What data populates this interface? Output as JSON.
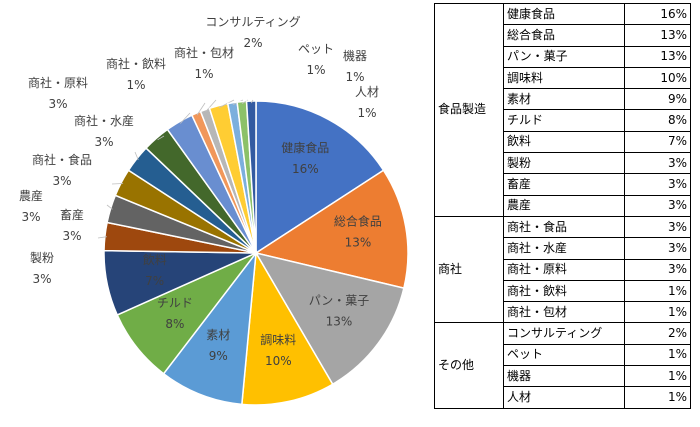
{
  "chart_data": {
    "type": "pie",
    "slices": [
      {
        "label": "健康食品",
        "value": 16,
        "percent_label": "16%",
        "color": "#4472C4"
      },
      {
        "label": "総合食品",
        "value": 13,
        "percent_label": "13%",
        "color": "#ED7D31"
      },
      {
        "label": "パン・菓子",
        "value": 13,
        "percent_label": "13%",
        "color": "#A5A5A5"
      },
      {
        "label": "調味料",
        "value": 10,
        "percent_label": "10%",
        "color": "#FFC000"
      },
      {
        "label": "素材",
        "value": 9,
        "percent_label": "9%",
        "color": "#5B9BD5"
      },
      {
        "label": "チルド",
        "value": 8,
        "percent_label": "8%",
        "color": "#70AD47"
      },
      {
        "label": "飲料",
        "value": 7,
        "percent_label": "7%",
        "color": "#264478"
      },
      {
        "label": "製粉",
        "value": 3,
        "percent_label": "3%",
        "color": "#9E480E"
      },
      {
        "label": "畜産",
        "value": 3,
        "percent_label": "3%",
        "color": "#636363"
      },
      {
        "label": "農産",
        "value": 3,
        "percent_label": "3%",
        "color": "#997300"
      },
      {
        "label": "商社・食品",
        "value": 3,
        "percent_label": "3%",
        "color": "#255E91"
      },
      {
        "label": "商社・水産",
        "value": 3,
        "percent_label": "3%",
        "color": "#43682B"
      },
      {
        "label": "商社・原料",
        "value": 3,
        "percent_label": "3%",
        "color": "#698ED0"
      },
      {
        "label": "商社・飲料",
        "value": 1,
        "percent_label": "1%",
        "color": "#F1975A"
      },
      {
        "label": "商社・包材",
        "value": 1,
        "percent_label": "1%",
        "color": "#B7B7B7"
      },
      {
        "label": "コンサルティング",
        "value": 2,
        "percent_label": "2%",
        "color": "#FFCD33"
      },
      {
        "label": "ペット",
        "value": 1,
        "percent_label": "1%",
        "color": "#7CAFDD"
      },
      {
        "label": "機器",
        "value": 1,
        "percent_label": "1%",
        "color": "#8CC168"
      },
      {
        "label": "人材",
        "value": 1,
        "percent_label": "1%",
        "color": "#335AA1"
      }
    ]
  },
  "table": {
    "groups": [
      {
        "name": "食品製造",
        "rows": [
          {
            "name": "健康食品",
            "value": "16%"
          },
          {
            "name": "総合食品",
            "value": "13%"
          },
          {
            "name": "パン・菓子",
            "value": "13%"
          },
          {
            "name": "調味料",
            "value": "10%"
          },
          {
            "name": "素材",
            "value": "9%"
          },
          {
            "name": "チルド",
            "value": "8%"
          },
          {
            "name": "飲料",
            "value": "7%"
          },
          {
            "name": "製粉",
            "value": "3%"
          },
          {
            "name": "畜産",
            "value": "3%"
          },
          {
            "name": "農産",
            "value": "3%"
          }
        ]
      },
      {
        "name": "商社",
        "rows": [
          {
            "name": "商社・食品",
            "value": "3%"
          },
          {
            "name": "商社・水産",
            "value": "3%"
          },
          {
            "name": "商社・原料",
            "value": "3%"
          },
          {
            "name": "商社・飲料",
            "value": "1%"
          },
          {
            "name": "商社・包材",
            "value": "1%"
          }
        ]
      },
      {
        "name": "その他",
        "rows": [
          {
            "name": "コンサルティング",
            "value": "2%"
          },
          {
            "name": "ペット",
            "value": "1%"
          },
          {
            "name": "機器",
            "value": "1%"
          },
          {
            "name": "人材",
            "value": "1%"
          }
        ]
      }
    ]
  }
}
